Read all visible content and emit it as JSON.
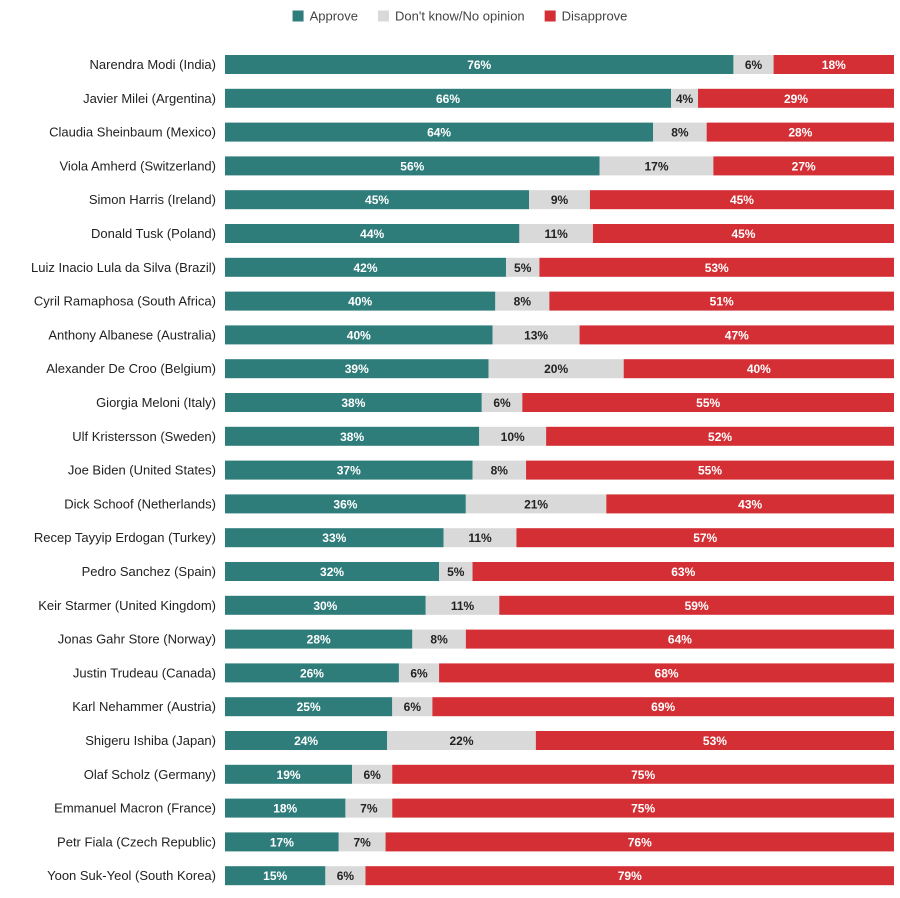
{
  "chart_data": {
    "type": "bar",
    "orientation": "horizontal",
    "stacked": true,
    "normalized": true,
    "value_suffix": "%",
    "legend_position": "top-center",
    "grid": false,
    "categories": [
      "Narendra Modi (India)",
      "Javier Milei (Argentina)",
      "Claudia Sheinbaum (Mexico)",
      "Viola Amherd (Switzerland)",
      "Simon Harris (Ireland)",
      "Donald Tusk (Poland)",
      "Luiz Inacio Lula da Silva (Brazil)",
      "Cyril Ramaphosa (South Africa)",
      "Anthony Albanese (Australia)",
      "Alexander De Croo (Belgium)",
      "Giorgia Meloni (Italy)",
      "Ulf Kristersson (Sweden)",
      "Joe Biden (United States)",
      "Dick Schoof (Netherlands)",
      "Recep Tayyip Erdogan (Turkey)",
      "Pedro Sanchez (Spain)",
      "Keir Starmer (United Kingdom)",
      "Jonas Gahr Store (Norway)",
      "Justin Trudeau (Canada)",
      "Karl Nehammer (Austria)",
      "Shigeru Ishiba (Japan)",
      "Olaf Scholz (Germany)",
      "Emmanuel Macron (France)",
      "Petr Fiala (Czech Republic)",
      "Yoon Suk-Yeol (South Korea)"
    ],
    "series": [
      {
        "name": "Approve",
        "color": "#2e7d7b",
        "label_color": "#ffffff",
        "values": [
          76,
          66,
          64,
          56,
          45,
          44,
          42,
          40,
          40,
          39,
          38,
          38,
          37,
          36,
          33,
          32,
          30,
          28,
          26,
          25,
          24,
          19,
          18,
          17,
          15
        ]
      },
      {
        "name": "Don't know/No opinion",
        "color": "#d9d9d9",
        "label_color": "#222222",
        "values": [
          6,
          4,
          8,
          17,
          9,
          11,
          5,
          8,
          13,
          20,
          6,
          10,
          8,
          21,
          11,
          5,
          11,
          8,
          6,
          6,
          22,
          6,
          7,
          7,
          6
        ]
      },
      {
        "name": "Disapprove",
        "color": "#d32f34",
        "label_color": "#ffffff",
        "values": [
          18,
          29,
          28,
          27,
          45,
          45,
          53,
          51,
          47,
          40,
          55,
          52,
          55,
          43,
          57,
          63,
          59,
          64,
          68,
          69,
          53,
          75,
          75,
          76,
          79
        ]
      }
    ]
  }
}
